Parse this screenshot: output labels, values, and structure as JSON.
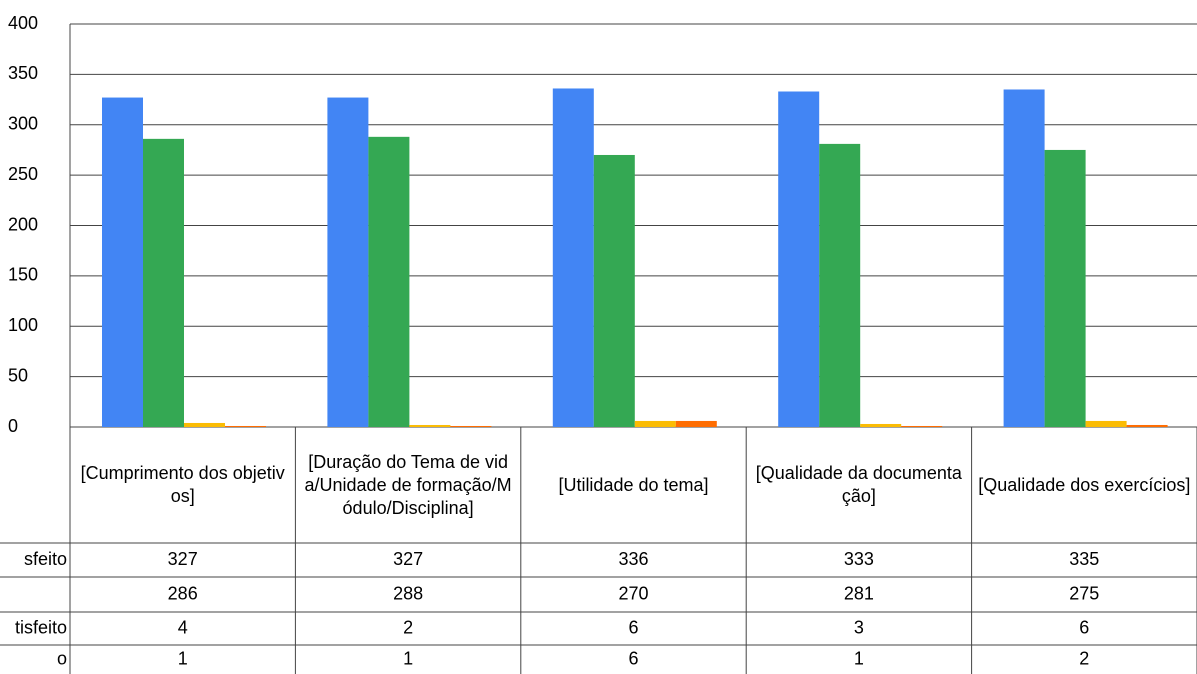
{
  "chart_data": {
    "type": "bar",
    "categories": [
      "[Cumprimento dos objetivos]",
      "[Duração do Tema de vida/Unidade de formação/Módulo/Disciplina]",
      "[Utilidade do tema]",
      "[Qualidade da documentação]",
      "[Qualidade dos exercícios]"
    ],
    "series": [
      {
        "name": "sfeito",
        "color": "#4285f4",
        "values": [
          327,
          327,
          336,
          333,
          335
        ]
      },
      {
        "color": "#34a853",
        "values": [
          286,
          288,
          270,
          281,
          275
        ]
      },
      {
        "name": "tisfeito",
        "color": "#fbbc04",
        "values": [
          4,
          2,
          6,
          3,
          6
        ]
      },
      {
        "name": "o",
        "color": "#ff6d01",
        "values": [
          1,
          1,
          6,
          1,
          2
        ]
      }
    ],
    "ylim": [
      0,
      400
    ],
    "yticks": [
      0,
      50,
      100,
      150,
      200,
      250,
      300,
      350,
      400
    ],
    "grid": true
  }
}
